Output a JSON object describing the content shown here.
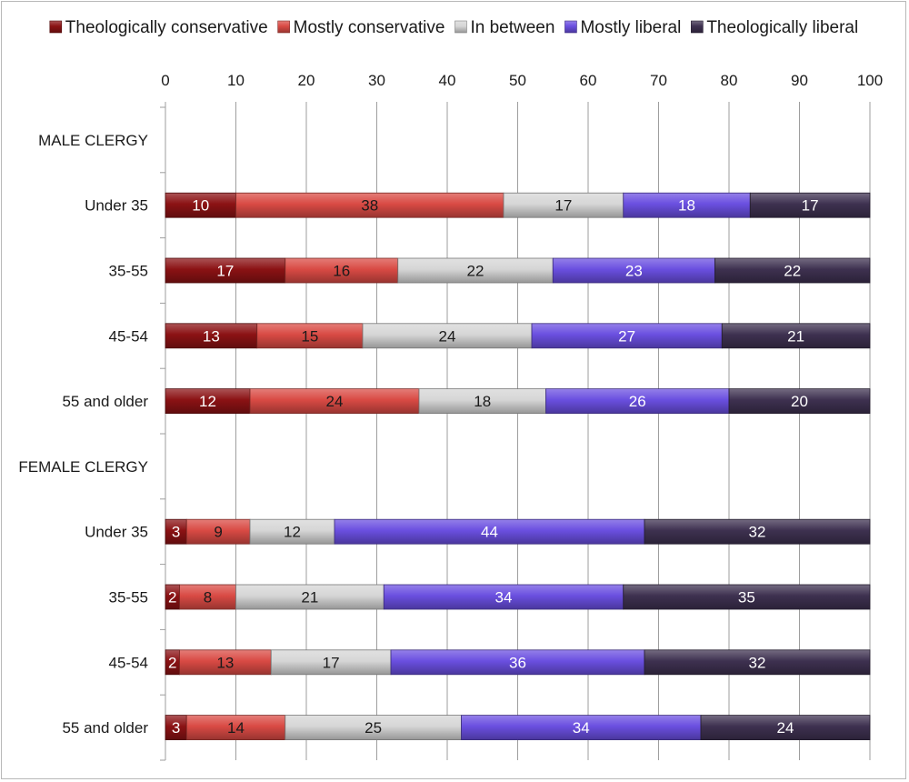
{
  "chart_data": {
    "type": "bar",
    "orientation": "horizontal",
    "stacked": true,
    "title": "",
    "xlabel": "",
    "ylabel": "",
    "xlim": [
      0,
      100
    ],
    "x_ticks": [
      0,
      10,
      20,
      30,
      40,
      50,
      60,
      70,
      80,
      90,
      100
    ],
    "x_axis_position": "top",
    "grid": true,
    "legend_position": "top",
    "categories": [
      "MALE CLERGY",
      "Under 35",
      "35-55",
      "45-54",
      "55 and older",
      "FEMALE CLERGY",
      "Under 35",
      "35-55",
      "45-54",
      "55 and older"
    ],
    "series": [
      {
        "name": "Theologically conservative",
        "color": "#8b1214",
        "label_color": "#ffffff",
        "values": [
          null,
          10,
          17,
          13,
          12,
          null,
          3,
          2,
          2,
          3
        ]
      },
      {
        "name": "Mostly conservative",
        "color": "#d94a44",
        "label_color": "#1a1a1a",
        "values": [
          null,
          38,
          16,
          15,
          24,
          null,
          9,
          8,
          13,
          14
        ]
      },
      {
        "name": "In between",
        "color": "#d6d6d6",
        "label_color": "#1a1a1a",
        "values": [
          null,
          17,
          22,
          24,
          18,
          null,
          12,
          21,
          17,
          25
        ]
      },
      {
        "name": "Mostly liberal",
        "color": "#6a4fe0",
        "label_color": "#ffffff",
        "values": [
          null,
          18,
          23,
          27,
          26,
          null,
          44,
          34,
          36,
          34
        ]
      },
      {
        "name": "Theologically liberal",
        "color": "#3e3150",
        "label_color": "#ffffff",
        "values": [
          null,
          17,
          22,
          21,
          20,
          null,
          32,
          35,
          32,
          24
        ]
      }
    ]
  }
}
